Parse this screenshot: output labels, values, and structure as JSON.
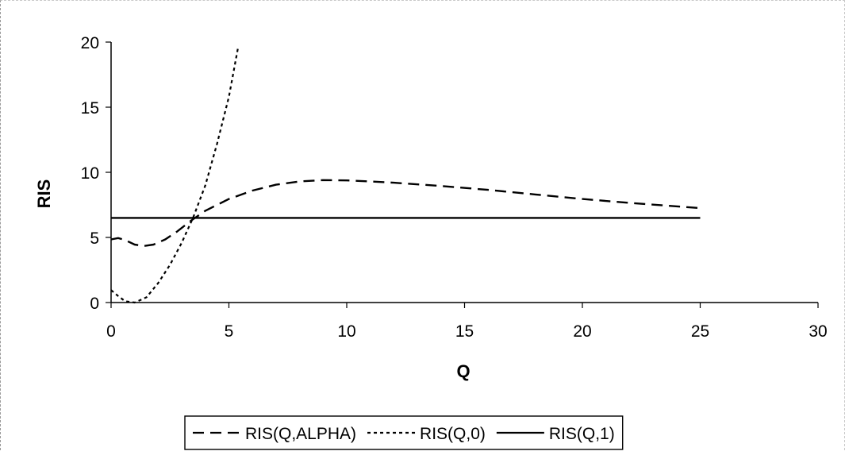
{
  "chart_data": {
    "type": "line",
    "xlabel": "Q",
    "ylabel": "RIS",
    "xlim": [
      0,
      30
    ],
    "ylim": [
      0,
      20
    ],
    "x_ticks": [
      "0",
      "5",
      "10",
      "15",
      "20",
      "25",
      "30"
    ],
    "y_ticks": [
      "0",
      "5",
      "10",
      "15",
      "20"
    ],
    "grid": false,
    "legend_position": "bottom",
    "series": [
      {
        "name": "RIS(Q,ALPHA)",
        "style": "dashed",
        "color": "#000000",
        "points": [
          [
            0,
            4.85
          ],
          [
            0.3,
            4.95
          ],
          [
            0.6,
            4.8
          ],
          [
            1,
            4.45
          ],
          [
            1.4,
            4.35
          ],
          [
            1.8,
            4.45
          ],
          [
            2.3,
            4.85
          ],
          [
            2.8,
            5.45
          ],
          [
            3.4,
            6.3
          ],
          [
            4,
            7.05
          ],
          [
            5,
            7.95
          ],
          [
            6,
            8.6
          ],
          [
            7,
            9.05
          ],
          [
            8,
            9.3
          ],
          [
            9,
            9.4
          ],
          [
            10,
            9.38
          ],
          [
            11,
            9.3
          ],
          [
            12,
            9.2
          ],
          [
            14,
            8.95
          ],
          [
            16,
            8.65
          ],
          [
            18,
            8.3
          ],
          [
            20,
            7.95
          ],
          [
            22,
            7.65
          ],
          [
            25,
            7.25
          ]
        ]
      },
      {
        "name": "RIS(Q,0)",
        "style": "dotted",
        "color": "#000000",
        "points": [
          [
            0,
            0.95
          ],
          [
            0.3,
            0.5
          ],
          [
            0.6,
            0.1
          ],
          [
            1,
            0.0
          ],
          [
            1.5,
            0.4
          ],
          [
            2,
            1.5
          ],
          [
            2.5,
            2.9
          ],
          [
            3,
            4.6
          ],
          [
            3.5,
            6.6
          ],
          [
            4,
            9.0
          ],
          [
            4.5,
            12.2
          ],
          [
            5,
            15.8
          ],
          [
            5.4,
            19.7
          ]
        ]
      },
      {
        "name": "RIS(Q,1)",
        "style": "solid",
        "color": "#000000",
        "points": [
          [
            0,
            6.5
          ],
          [
            25,
            6.5
          ]
        ]
      }
    ]
  }
}
